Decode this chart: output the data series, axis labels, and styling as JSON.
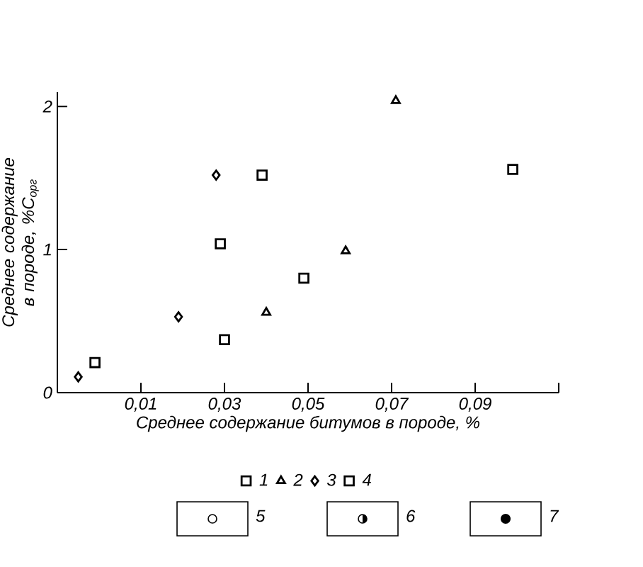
{
  "chart_data": {
    "type": "scatter",
    "xlabel": "Среднее содержание битумов в породе, %",
    "ylabel": "Среднее содержание в породе, %С$_{орг}$",
    "xlim": [
      -0.01,
      0.11
    ],
    "ylim": [
      0,
      2.1
    ],
    "xticks": [
      {
        "value": 0.01,
        "label": "0,01"
      },
      {
        "value": 0.03,
        "label": "0,03"
      },
      {
        "value": 0.05,
        "label": "0,05"
      },
      {
        "value": 0.07,
        "label": "0,07"
      },
      {
        "value": 0.09,
        "label": "0,09"
      },
      {
        "value": 0.11,
        "label": null
      }
    ],
    "yticks": [
      0,
      1,
      2
    ],
    "legend": "bottom",
    "grid": false,
    "series": [
      {
        "name": "1",
        "marker": "square",
        "color": "#000000",
        "x": [
          0.03,
          0.029,
          0.049,
          0.039,
          0.099
        ],
        "values": [
          0.37,
          1.04,
          0.8,
          1.52,
          1.56
        ]
      },
      {
        "name": "2",
        "marker": "triangle",
        "color": "#000000",
        "x": [
          0.04,
          0.059,
          0.071
        ],
        "values": [
          0.56,
          0.99,
          2.04
        ]
      },
      {
        "name": "3",
        "marker": "diamond",
        "color": "#000000",
        "x": [
          -0.005,
          0.019,
          0.028
        ],
        "values": [
          0.11,
          0.53,
          1.52
        ]
      },
      {
        "name": "4",
        "marker": "square",
        "color": "#000000",
        "x": [
          -0.001
        ],
        "values": [
          0.21
        ]
      }
    ],
    "annotations": [
      "5",
      "6",
      "7"
    ]
  }
}
